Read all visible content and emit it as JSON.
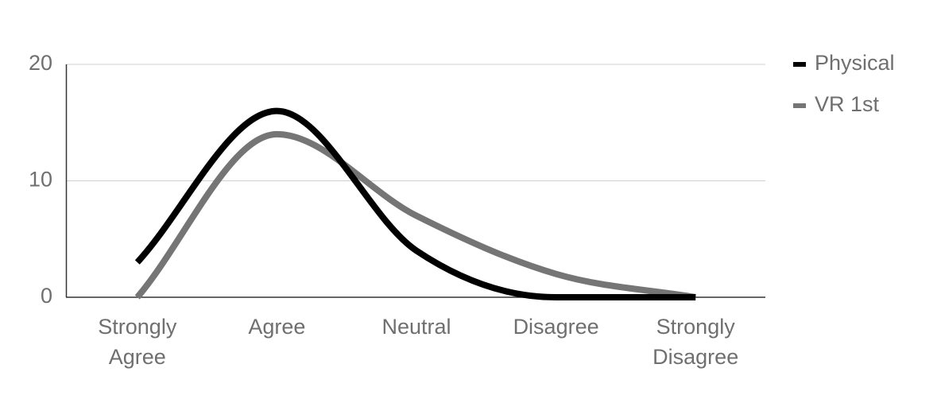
{
  "chart_data": {
    "type": "line",
    "categories": [
      "Strongly Agree",
      "Agree",
      "Neutral",
      "Disagree",
      "Strongly Disagree"
    ],
    "series": [
      {
        "name": "Physical",
        "color": "#000000",
        "values": [
          3,
          16,
          4,
          0,
          0
        ]
      },
      {
        "name": "VR 1st",
        "color": "#757575",
        "values": [
          0,
          14,
          7,
          2,
          0
        ]
      }
    ],
    "ylim": [
      0,
      20
    ],
    "yticks": [
      0,
      10,
      20
    ],
    "grid": true,
    "smooth": true,
    "legend": "right"
  }
}
